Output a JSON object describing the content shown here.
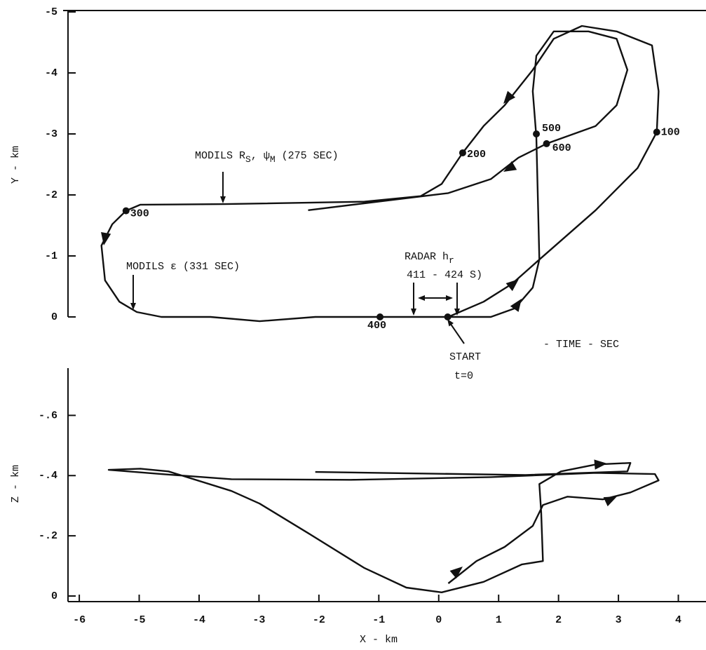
{
  "chart_data": [
    {
      "type": "line",
      "y_label": "Y - km",
      "color": "#111111",
      "xlim": [
        -6.2,
        4.45
      ],
      "ylim": [
        0,
        -5
      ],
      "yticks": [
        -5,
        -4,
        -3,
        -2,
        -1,
        0
      ],
      "x": [
        0.16,
        0.75,
        1.22,
        1.68,
        2.62,
        3.32,
        3.64,
        3.67,
        3.56,
        2.97,
        2.39,
        1.92,
        1.57,
        1.1,
        0.75,
        0.4,
        0.05,
        -0.3,
        -1.24,
        -3.58,
        -4.98,
        -5.22,
        -5.45,
        -5.63,
        -5.57,
        -5.33,
        -5.04,
        -4.63,
        -3.81,
        -2.99,
        -2.06,
        -0.98,
        0.16,
        0.87,
        1.27,
        1.57,
        1.68,
        1.66,
        1.63,
        1.57,
        1.63,
        1.92,
        2.5,
        2.97,
        3.15,
        2.97,
        2.62,
        1.8,
        1.33,
        0.87,
        0.16,
        -0.77,
        -2.18
      ],
      "values": [
        0,
        -0.25,
        -0.54,
        -0.94,
        -1.75,
        -2.44,
        -3.03,
        -3.7,
        -4.45,
        -4.68,
        -4.77,
        -4.56,
        -4.05,
        -3.47,
        -3.13,
        -2.69,
        -2.18,
        -1.98,
        -1.89,
        -1.85,
        -1.84,
        -1.74,
        -1.52,
        -1.17,
        -0.6,
        -0.25,
        -0.08,
        0,
        0,
        0.07,
        0,
        0,
        0,
        0,
        -0.14,
        -0.48,
        -0.94,
        -1.75,
        -2.95,
        -3.7,
        -4.28,
        -4.68,
        -4.68,
        -4.56,
        -4.05,
        -3.47,
        -3.13,
        -2.84,
        -2.61,
        -2.26,
        -2.03,
        -1.92,
        -1.75
      ],
      "time_marks": {
        "x": [
          0.15,
          3.64,
          0.4,
          -5.22,
          -0.98,
          1.63,
          1.8
        ],
        "y": [
          0,
          -3.03,
          -2.69,
          -1.74,
          0,
          -3.0,
          -2.84
        ],
        "labels": [
          null,
          "100",
          "200",
          "300",
          "400",
          "500",
          "600"
        ]
      },
      "annotations": [
        {
          "parts": [
            "MODILS R",
            "S",
            ", ψ",
            "M",
            " (275 SEC)"
          ]
        },
        {
          "parts": [
            "MODILS ε (331 SEC)"
          ]
        },
        {
          "parts": [
            "RADAR h",
            "r"
          ]
        },
        {
          "parts": [
            "411 - 424 S)"
          ]
        },
        {
          "parts": [
            "START"
          ]
        },
        {
          "parts": [
            "t=0"
          ]
        },
        {
          "parts": [
            "- TIME - SEC"
          ]
        }
      ]
    },
    {
      "type": "line",
      "x_label": "X - km",
      "y_label": "Z - km",
      "color": "#111111",
      "xlim": [
        -6.2,
        4.45
      ],
      "ylim": [
        0,
        -0.75
      ],
      "xticks": [
        -6,
        -5,
        -4,
        -3,
        -2,
        -1,
        0,
        1,
        2,
        3,
        4
      ],
      "yticks": [
        {
          "value": -0.6,
          "label": "-.6"
        },
        {
          "value": -0.4,
          "label": "-.4"
        },
        {
          "value": -0.2,
          "label": "-.2"
        },
        0
      ],
      "x": [
        0.16,
        0.63,
        1.1,
        1.57,
        1.74,
        2.15,
        2.74,
        3.2,
        3.67,
        3.61,
        2.62,
        0.87,
        -1.47,
        -3.46,
        -4.63,
        -5.51,
        -4.98,
        -4.51,
        -3.46,
        -2.99,
        -2.18,
        -1.24,
        -0.54,
        0.05,
        0.75,
        1.39,
        1.74,
        1.71,
        1.68,
        2.04,
        2.62,
        3.2,
        3.15,
        1.45,
        -2.06
      ],
      "values": [
        -0.042,
        -0.116,
        -0.163,
        -0.233,
        -0.302,
        -0.33,
        -0.321,
        -0.344,
        -0.384,
        -0.405,
        -0.409,
        -0.395,
        -0.386,
        -0.388,
        -0.405,
        -0.419,
        -0.423,
        -0.414,
        -0.349,
        -0.307,
        -0.209,
        -0.093,
        -0.028,
        -0.012,
        -0.047,
        -0.105,
        -0.116,
        -0.279,
        -0.372,
        -0.414,
        -0.437,
        -0.442,
        -0.414,
        -0.402,
        -0.412
      ]
    }
  ]
}
